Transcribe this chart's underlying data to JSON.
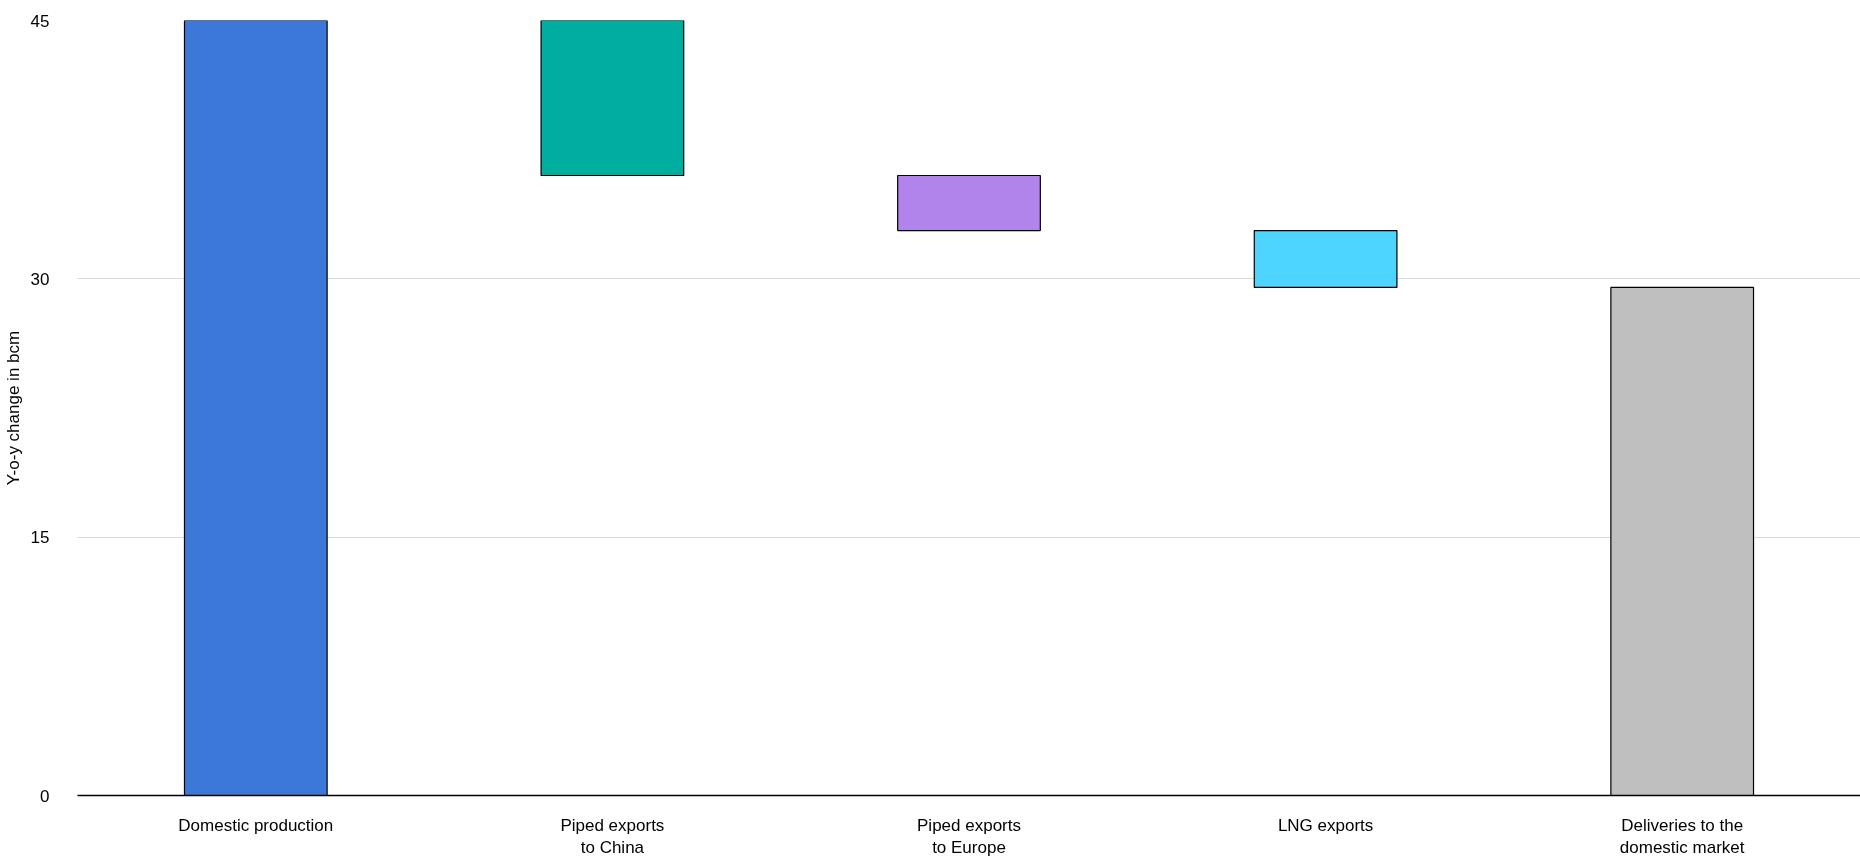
{
  "chart_data": {
    "type": "bar",
    "ylabel": "Y-o-y change in bcm",
    "categories": [
      "Domestic production",
      "Piped exports to China",
      "Piped exports to Europe",
      "LNG exports",
      "Deliveries to the domestic market"
    ],
    "values": [
      45,
      -9,
      -3.2,
      -3.3,
      29.5
    ],
    "base": [
      0,
      45,
      36,
      32.8,
      0
    ],
    "colors": [
      "#3c78d8",
      "#00ae9f",
      "#b084ea",
      "#4dd5ff",
      "#bfbfbf"
    ],
    "ylim": [
      0,
      45
    ],
    "yticks": [
      0,
      15,
      30,
      45
    ],
    "grid": "y"
  }
}
